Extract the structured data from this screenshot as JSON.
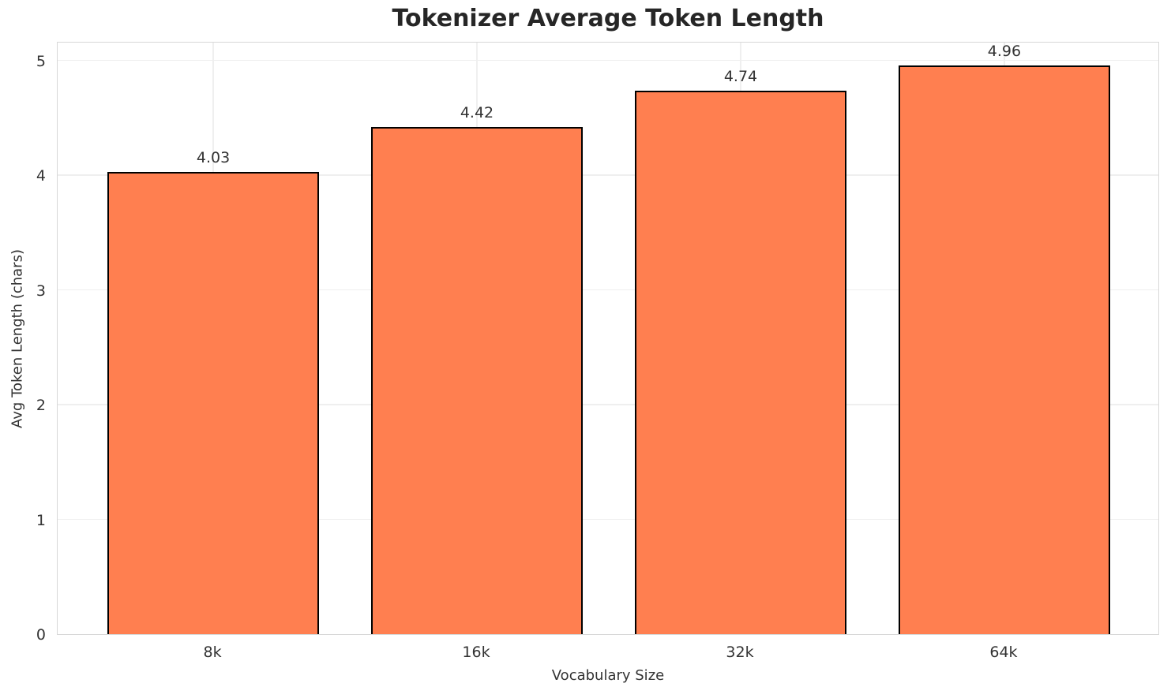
{
  "chart_data": {
    "type": "bar",
    "title": "Tokenizer Average Token Length",
    "xlabel": "Vocabulary Size",
    "ylabel": "Avg Token Length (chars)",
    "categories": [
      "8k",
      "16k",
      "32k",
      "64k"
    ],
    "values": [
      4.03,
      4.42,
      4.74,
      4.96
    ],
    "value_labels": [
      "4.03",
      "4.42",
      "4.74",
      "4.96"
    ],
    "yticks": [
      0,
      1,
      2,
      3,
      4,
      5
    ],
    "ytick_labels": [
      "0",
      "1",
      "2",
      "3",
      "4",
      "5"
    ],
    "ylim": [
      0,
      5.17
    ],
    "grid": true,
    "legend": "none",
    "bar_color": "#FF7F50",
    "bar_edge_color": "#000000",
    "grid_color": "#efefef",
    "spine_color": "#d8d8d8",
    "text_color": "#333333",
    "title_color": "#262626",
    "background_color": "#ffffff"
  }
}
